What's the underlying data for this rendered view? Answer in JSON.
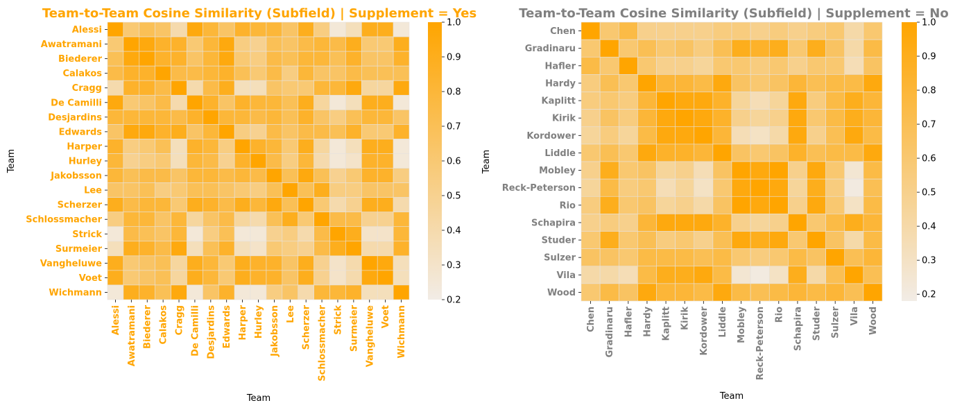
{
  "colors": {
    "yes_title": "#ffa500",
    "no_title": "#808080",
    "cmap_low": "#f2ece6",
    "cmap_high": "#ffa500",
    "axis_text": "#000000"
  },
  "chart_data": [
    {
      "type": "heatmap",
      "title": "Team-to-Team Cosine Similarity (Subfield) | Supplement = Yes",
      "xlabel": "Team",
      "ylabel": "Team",
      "vmin": 0.2,
      "vmax": 1.0,
      "colorbar_ticks": [
        "0.2",
        "0.3",
        "0.4",
        "0.5",
        "0.6",
        "0.7",
        "0.8",
        "0.9",
        "1.0"
      ],
      "labels": [
        "Alessi",
        "Awatramani",
        "Biederer",
        "Calakos",
        "Cragg",
        "De Camilli",
        "Desjardins",
        "Edwards",
        "Harper",
        "Hurley",
        "Jakobsson",
        "Lee",
        "Scherzer",
        "Schlossmacher",
        "Strick",
        "Surmeier",
        "Vangheluwe",
        "Voet",
        "Wichmann"
      ],
      "values": [
        [
          1.0,
          0.6,
          0.7,
          0.65,
          0.4,
          0.95,
          0.8,
          0.65,
          0.85,
          0.8,
          0.8,
          0.65,
          0.9,
          0.55,
          0.25,
          0.35,
          0.9,
          0.9,
          0.25
        ],
        [
          0.6,
          1.0,
          0.95,
          0.85,
          0.85,
          0.6,
          0.8,
          0.95,
          0.55,
          0.5,
          0.7,
          0.65,
          0.75,
          0.8,
          0.75,
          0.9,
          0.6,
          0.6,
          0.9
        ],
        [
          0.7,
          0.95,
          1.0,
          0.85,
          0.85,
          0.65,
          0.8,
          0.95,
          0.6,
          0.55,
          0.75,
          0.7,
          0.8,
          0.8,
          0.7,
          0.85,
          0.65,
          0.65,
          0.85
        ],
        [
          0.75,
          0.85,
          0.85,
          1.0,
          0.75,
          0.75,
          0.8,
          0.85,
          0.7,
          0.6,
          0.75,
          0.55,
          0.8,
          0.65,
          0.65,
          0.75,
          0.7,
          0.7,
          0.7
        ],
        [
          0.4,
          0.85,
          0.85,
          0.75,
          1.0,
          0.4,
          0.75,
          0.9,
          0.35,
          0.35,
          0.65,
          0.6,
          0.6,
          0.8,
          0.8,
          0.95,
          0.45,
          0.45,
          0.95
        ],
        [
          0.95,
          0.6,
          0.65,
          0.75,
          0.4,
          1.0,
          0.85,
          0.65,
          0.85,
          0.8,
          0.8,
          0.7,
          0.9,
          0.45,
          0.25,
          0.35,
          0.9,
          0.9,
          0.25
        ],
        [
          0.8,
          0.8,
          0.8,
          0.8,
          0.75,
          0.85,
          1.0,
          0.8,
          0.8,
          0.75,
          0.8,
          0.7,
          0.85,
          0.65,
          0.55,
          0.7,
          0.8,
          0.8,
          0.65
        ],
        [
          0.65,
          0.95,
          0.95,
          0.85,
          0.9,
          0.65,
          0.8,
          1.0,
          0.55,
          0.5,
          0.75,
          0.65,
          0.75,
          0.75,
          0.7,
          0.85,
          0.6,
          0.6,
          0.85
        ],
        [
          0.85,
          0.55,
          0.6,
          0.7,
          0.35,
          0.85,
          0.8,
          0.55,
          1.0,
          0.85,
          0.8,
          0.6,
          0.9,
          0.45,
          0.25,
          0.35,
          0.9,
          0.9,
          0.25
        ],
        [
          0.8,
          0.5,
          0.55,
          0.6,
          0.35,
          0.8,
          0.75,
          0.5,
          0.85,
          1.0,
          0.75,
          0.55,
          0.8,
          0.4,
          0.25,
          0.3,
          0.85,
          0.85,
          0.25
        ],
        [
          0.8,
          0.7,
          0.75,
          0.75,
          0.65,
          0.8,
          0.8,
          0.75,
          0.8,
          0.75,
          1.0,
          0.7,
          0.95,
          0.7,
          0.5,
          0.6,
          0.85,
          0.85,
          0.55
        ],
        [
          0.65,
          0.65,
          0.7,
          0.55,
          0.6,
          0.7,
          0.7,
          0.65,
          0.6,
          0.55,
          0.7,
          1.0,
          0.7,
          0.9,
          0.55,
          0.55,
          0.65,
          0.65,
          0.65
        ],
        [
          0.9,
          0.75,
          0.8,
          0.8,
          0.6,
          0.9,
          0.85,
          0.75,
          0.9,
          0.8,
          0.95,
          0.7,
          1.0,
          0.6,
          0.4,
          0.5,
          0.9,
          0.9,
          0.4
        ],
        [
          0.55,
          0.8,
          0.8,
          0.65,
          0.8,
          0.45,
          0.65,
          0.75,
          0.45,
          0.4,
          0.7,
          0.9,
          0.6,
          1.0,
          0.75,
          0.75,
          0.5,
          0.5,
          0.8
        ],
        [
          0.25,
          0.75,
          0.7,
          0.65,
          0.8,
          0.25,
          0.55,
          0.7,
          0.25,
          0.25,
          0.5,
          0.55,
          0.4,
          0.75,
          1.0,
          0.9,
          0.3,
          0.3,
          0.8
        ],
        [
          0.35,
          0.9,
          0.85,
          0.75,
          0.95,
          0.35,
          0.7,
          0.85,
          0.35,
          0.3,
          0.6,
          0.55,
          0.5,
          0.75,
          0.9,
          1.0,
          0.4,
          0.4,
          0.85
        ],
        [
          0.9,
          0.6,
          0.65,
          0.7,
          0.45,
          0.9,
          0.8,
          0.6,
          0.9,
          0.85,
          0.85,
          0.65,
          0.9,
          0.5,
          0.3,
          0.4,
          1.0,
          0.95,
          0.35
        ],
        [
          0.9,
          0.6,
          0.65,
          0.7,
          0.45,
          0.9,
          0.8,
          0.6,
          0.9,
          0.85,
          0.85,
          0.65,
          0.9,
          0.5,
          0.3,
          0.4,
          0.95,
          1.0,
          0.35
        ],
        [
          0.25,
          0.9,
          0.85,
          0.7,
          0.95,
          0.25,
          0.65,
          0.85,
          0.25,
          0.25,
          0.55,
          0.65,
          0.4,
          0.8,
          0.8,
          0.85,
          0.35,
          0.35,
          1.0
        ]
      ]
    },
    {
      "type": "heatmap",
      "title": "Team-to-Team Cosine Similarity (Subfield) | Supplement = No",
      "xlabel": "Team",
      "ylabel": "Team",
      "vmin": 0.18,
      "vmax": 1.0,
      "colorbar_ticks": [
        "0.2",
        "0.3",
        "0.4",
        "0.5",
        "0.6",
        "0.7",
        "0.8",
        "0.9",
        "1.0"
      ],
      "labels": [
        "Chen",
        "Gradinaru",
        "Hafler",
        "Hardy",
        "Kaplitt",
        "Kirik",
        "Kordower",
        "Liddle",
        "Mobley",
        "Reck-Peterson",
        "Rio",
        "Schapira",
        "Studer",
        "Sulzer",
        "Vila",
        "Wood"
      ],
      "values": [
        [
          1.0,
          0.6,
          0.75,
          0.5,
          0.5,
          0.5,
          0.5,
          0.55,
          0.55,
          0.5,
          0.55,
          0.5,
          0.55,
          0.6,
          0.4,
          0.6
        ],
        [
          0.6,
          1.0,
          0.6,
          0.7,
          0.6,
          0.65,
          0.55,
          0.7,
          0.9,
          0.85,
          0.9,
          0.6,
          0.9,
          0.65,
          0.4,
          0.75
        ],
        [
          0.75,
          0.6,
          1.0,
          0.6,
          0.5,
          0.5,
          0.45,
          0.6,
          0.6,
          0.55,
          0.6,
          0.5,
          0.6,
          0.6,
          0.35,
          0.65
        ],
        [
          0.55,
          0.7,
          0.6,
          1.0,
          0.8,
          0.8,
          0.75,
          0.95,
          0.65,
          0.6,
          0.65,
          0.8,
          0.7,
          0.75,
          0.75,
          0.95
        ],
        [
          0.55,
          0.6,
          0.55,
          0.8,
          1.0,
          0.95,
          0.95,
          0.85,
          0.45,
          0.35,
          0.45,
          0.95,
          0.55,
          0.75,
          0.9,
          0.8
        ],
        [
          0.5,
          0.65,
          0.55,
          0.8,
          0.95,
          1.0,
          0.95,
          0.85,
          0.5,
          0.45,
          0.5,
          0.95,
          0.6,
          0.75,
          0.9,
          0.8
        ],
        [
          0.45,
          0.55,
          0.45,
          0.75,
          0.95,
          0.95,
          1.0,
          0.8,
          0.35,
          0.3,
          0.4,
          0.95,
          0.5,
          0.7,
          0.95,
          0.75
        ],
        [
          0.6,
          0.7,
          0.6,
          0.95,
          0.85,
          0.85,
          0.8,
          1.0,
          0.65,
          0.6,
          0.65,
          0.85,
          0.7,
          0.75,
          0.75,
          0.95
        ],
        [
          0.5,
          0.9,
          0.6,
          0.65,
          0.45,
          0.5,
          0.35,
          0.65,
          1.0,
          0.95,
          1.0,
          0.5,
          0.95,
          0.6,
          0.25,
          0.75
        ],
        [
          0.45,
          0.75,
          0.55,
          0.6,
          0.35,
          0.45,
          0.3,
          0.6,
          0.95,
          1.0,
          0.95,
          0.45,
          0.9,
          0.55,
          0.2,
          0.7
        ],
        [
          0.55,
          0.9,
          0.6,
          0.65,
          0.45,
          0.5,
          0.4,
          0.65,
          1.0,
          0.95,
          1.0,
          0.5,
          0.95,
          0.6,
          0.3,
          0.75
        ],
        [
          0.5,
          0.55,
          0.5,
          0.8,
          0.95,
          0.95,
          0.95,
          0.85,
          0.5,
          0.45,
          0.5,
          1.0,
          0.6,
          0.75,
          0.9,
          0.8
        ],
        [
          0.6,
          0.9,
          0.6,
          0.7,
          0.55,
          0.6,
          0.5,
          0.7,
          0.95,
          0.9,
          0.95,
          0.6,
          1.0,
          0.65,
          0.4,
          0.75
        ],
        [
          0.65,
          0.65,
          0.6,
          0.75,
          0.75,
          0.75,
          0.7,
          0.75,
          0.6,
          0.55,
          0.6,
          0.75,
          0.65,
          1.0,
          0.7,
          0.8
        ],
        [
          0.4,
          0.4,
          0.35,
          0.75,
          0.9,
          0.9,
          0.95,
          0.75,
          0.25,
          0.2,
          0.3,
          0.9,
          0.4,
          0.7,
          1.0,
          0.7
        ],
        [
          0.6,
          0.75,
          0.65,
          0.95,
          0.8,
          0.8,
          0.75,
          0.95,
          0.75,
          0.7,
          0.75,
          0.8,
          0.75,
          0.8,
          0.7,
          1.0
        ]
      ]
    }
  ]
}
